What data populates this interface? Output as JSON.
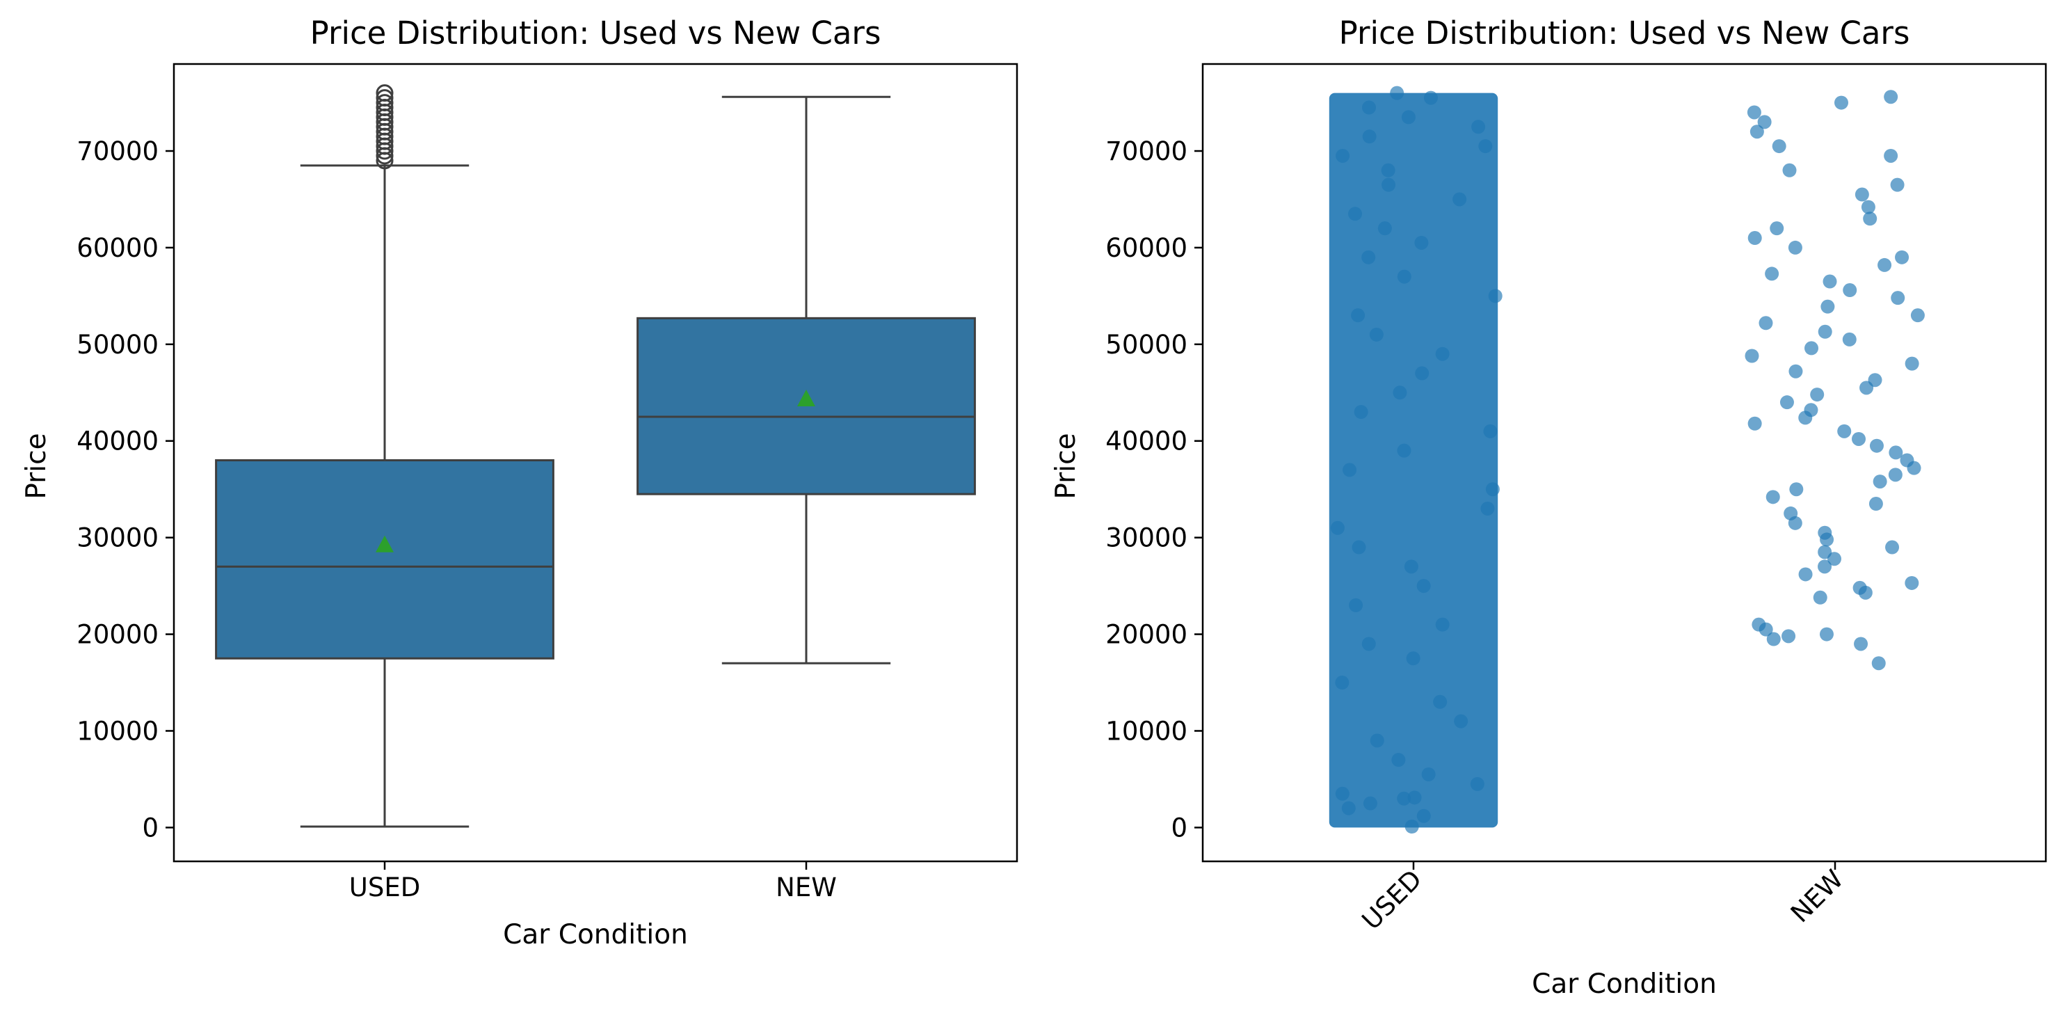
{
  "chart_data": [
    {
      "type": "box",
      "title": "Price Distribution: Used vs New Cars",
      "xlabel": "Car Condition",
      "ylabel": "Price",
      "categories": [
        "USED",
        "NEW"
      ],
      "yticks": [
        0,
        10000,
        20000,
        30000,
        40000,
        50000,
        60000,
        70000
      ],
      "ylim": [
        -3500,
        79000
      ],
      "box_color": "#3274a1",
      "line_color": "#3f3f3f",
      "mean_marker_color": "#2ca02c",
      "boxes": [
        {
          "category": "USED",
          "whisker_low": 100,
          "q1": 17500,
          "median": 27000,
          "q3": 38000,
          "whisker_high": 68500,
          "mean": 29200,
          "outliers": [
            69000,
            69500,
            70000,
            70500,
            71000,
            71500,
            72000,
            72500,
            73000,
            73500,
            74000,
            74500,
            75000,
            75500,
            76000
          ]
        },
        {
          "category": "NEW",
          "whisker_low": 17000,
          "q1": 34500,
          "median": 42500,
          "q3": 52700,
          "whisker_high": 75600,
          "mean": 44300,
          "outliers": []
        }
      ]
    },
    {
      "type": "scatter",
      "subtype": "strip",
      "title": "Price Distribution: Used vs New Cars",
      "xlabel": "Car Condition",
      "ylabel": "Price",
      "categories": [
        "USED",
        "NEW"
      ],
      "x_tick_rotation": 45,
      "yticks": [
        0,
        10000,
        20000,
        30000,
        40000,
        50000,
        60000,
        70000
      ],
      "ylim": [
        -3500,
        79000
      ],
      "point_color": "#1f77b4",
      "series": [
        {
          "category": "USED",
          "approx_min": 0,
          "approx_max": 76000,
          "values": [
            100,
            1200,
            2000,
            2500,
            3000,
            3100,
            3500,
            4500,
            5500,
            7000,
            9000,
            11000,
            13000,
            15000,
            17500,
            19000,
            21000,
            23000,
            25000,
            27000,
            29000,
            31000,
            33000,
            35000,
            37000,
            39000,
            41000,
            43000,
            45000,
            47000,
            49000,
            51000,
            53000,
            55000,
            57000,
            59000,
            60500,
            62000,
            63500,
            65000,
            66500,
            68000,
            69500,
            70500,
            71500,
            72500,
            73500,
            74500,
            75500,
            76000
          ]
        },
        {
          "category": "NEW",
          "values": [
            17000,
            19000,
            19500,
            19800,
            20000,
            20500,
            21000,
            23800,
            24300,
            24800,
            25300,
            26200,
            27000,
            27800,
            28500,
            29000,
            29800,
            30500,
            31500,
            32500,
            33500,
            34200,
            35000,
            35800,
            36500,
            37200,
            38000,
            38800,
            39500,
            40200,
            41000,
            41800,
            42400,
            43200,
            44000,
            44800,
            45500,
            46300,
            47200,
            48000,
            48800,
            49600,
            50500,
            51300,
            52200,
            53000,
            53900,
            54800,
            55600,
            56500,
            57300,
            58200,
            59000,
            60000,
            61000,
            62000,
            63000,
            64200,
            65500,
            66500,
            68000,
            69500,
            70500,
            72000,
            73000,
            74000,
            75000,
            75600
          ]
        }
      ]
    }
  ]
}
